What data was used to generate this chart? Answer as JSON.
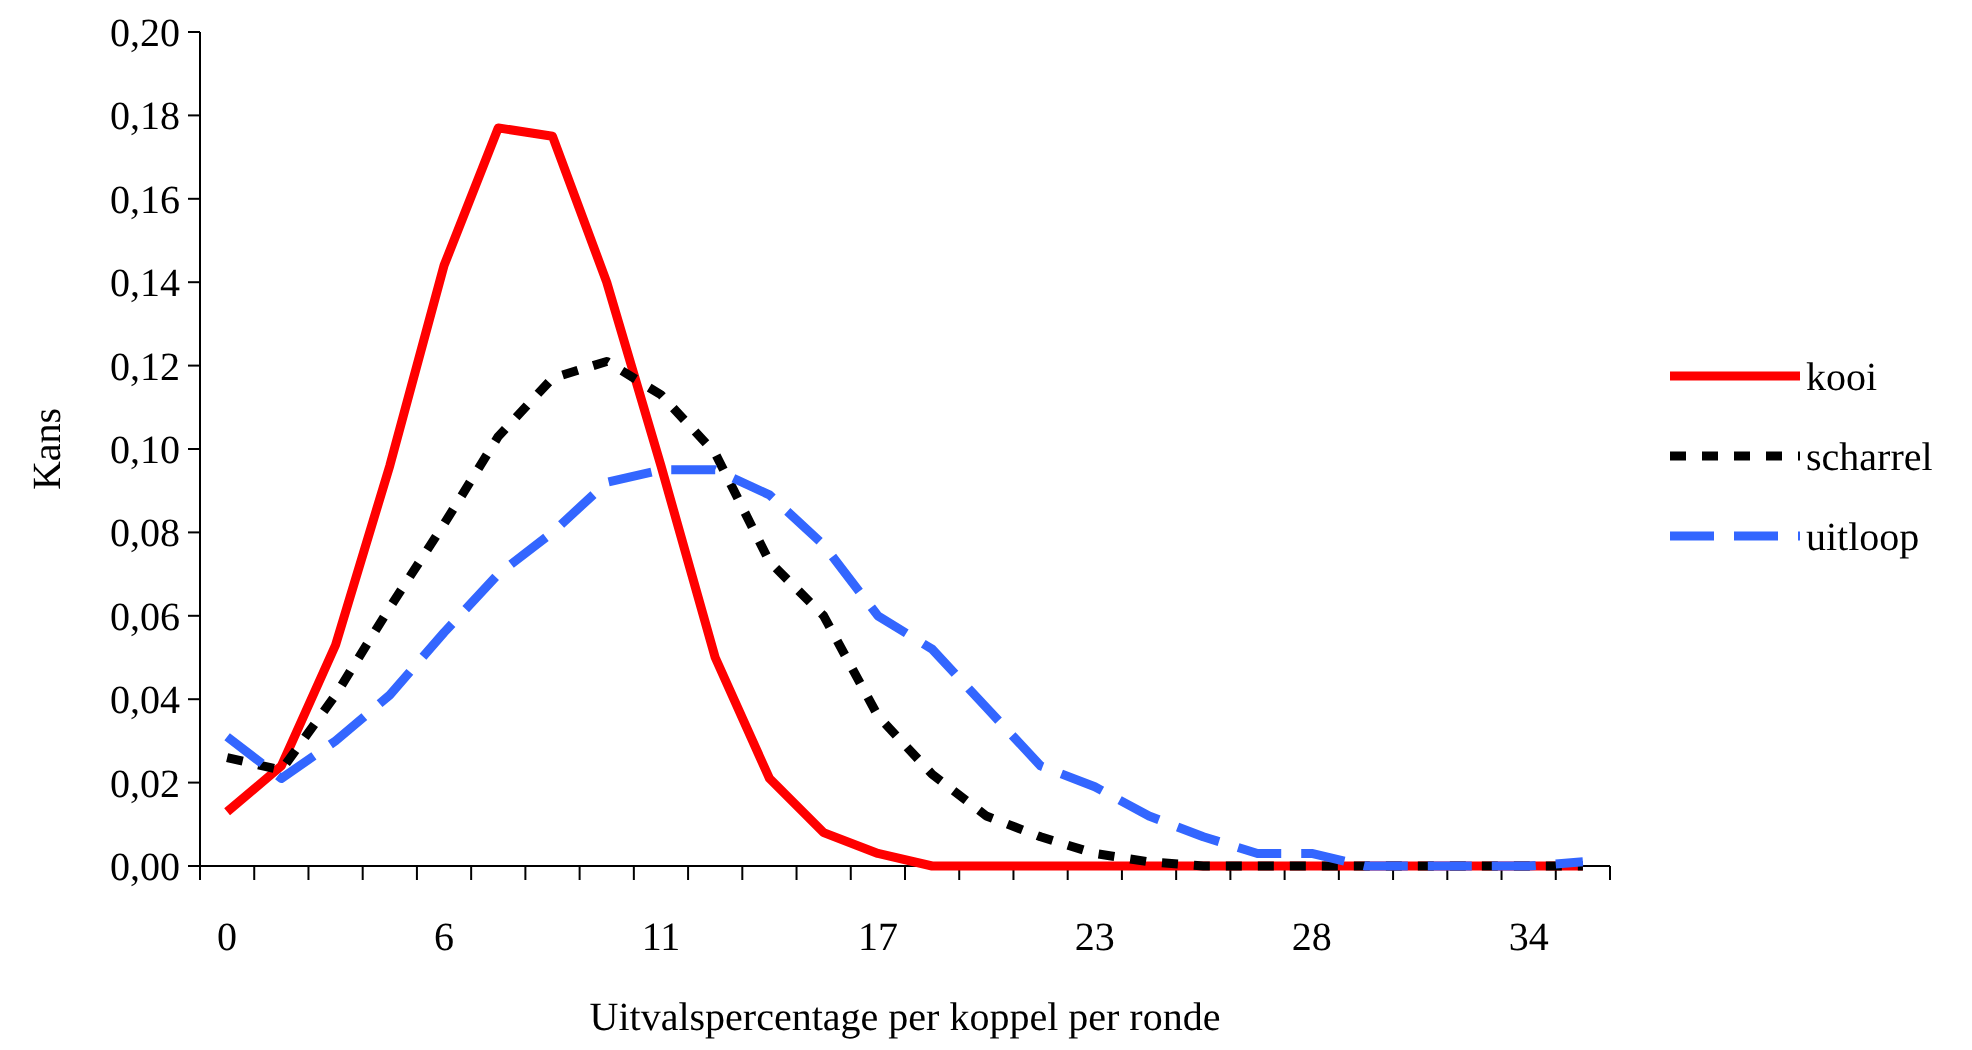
{
  "chart_data": {
    "type": "line",
    "xlabel": "Uitvalspercentage per koppel per ronde",
    "ylabel": "Kans",
    "categories": [
      "0",
      null,
      null,
      null,
      "6",
      null,
      null,
      null,
      "11",
      null,
      null,
      null,
      "17",
      null,
      null,
      null,
      "23",
      null,
      null,
      null,
      "28",
      null,
      null,
      null,
      "34",
      null
    ],
    "ylim": [
      0,
      0.2
    ],
    "yticks": [
      {
        "value": 0,
        "label": "0,00"
      },
      {
        "value": 0.02,
        "label": "0,02"
      },
      {
        "value": 0.04,
        "label": "0,04"
      },
      {
        "value": 0.06,
        "label": "0,06"
      },
      {
        "value": 0.08,
        "label": "0,08"
      },
      {
        "value": 0.1,
        "label": "0,10"
      },
      {
        "value": 0.12,
        "label": "0,12"
      },
      {
        "value": 0.14,
        "label": "0,14"
      },
      {
        "value": 0.16,
        "label": "0,16"
      },
      {
        "value": 0.18,
        "label": "0,18"
      },
      {
        "value": 0.2,
        "label": "0,20"
      }
    ],
    "grid": false,
    "legend": "right",
    "marker": "none",
    "series": [
      {
        "name": "kooi",
        "color": "#ff0000",
        "line_style": "solid",
        "values": [
          0.013,
          0.024,
          0.053,
          0.096,
          0.144,
          0.177,
          0.175,
          0.14,
          0.096,
          0.05,
          0.021,
          0.008,
          0.003,
          0,
          0,
          0,
          0,
          0,
          0,
          0,
          0,
          0,
          0,
          0,
          0,
          0
        ]
      },
      {
        "name": "scharrel",
        "color": "#000000",
        "line_style": "dotted",
        "values": [
          0.026,
          0.023,
          0.041,
          0.062,
          0.082,
          0.103,
          0.117,
          0.121,
          0.113,
          0.099,
          0.073,
          0.06,
          0.036,
          0.022,
          0.012,
          0.007,
          0.003,
          0.001,
          0,
          0,
          0,
          0,
          0,
          0,
          0,
          0
        ]
      },
      {
        "name": "uitloop",
        "color": "#3366ff",
        "line_style": "dashed",
        "values": [
          0.031,
          0.021,
          0.03,
          0.041,
          0.056,
          0.07,
          0.08,
          0.092,
          0.095,
          0.095,
          0.089,
          0.077,
          0.06,
          0.052,
          0.038,
          0.024,
          0.019,
          0.012,
          0.007,
          0.003,
          0.003,
          0,
          0,
          0,
          0,
          0.001
        ]
      }
    ]
  }
}
